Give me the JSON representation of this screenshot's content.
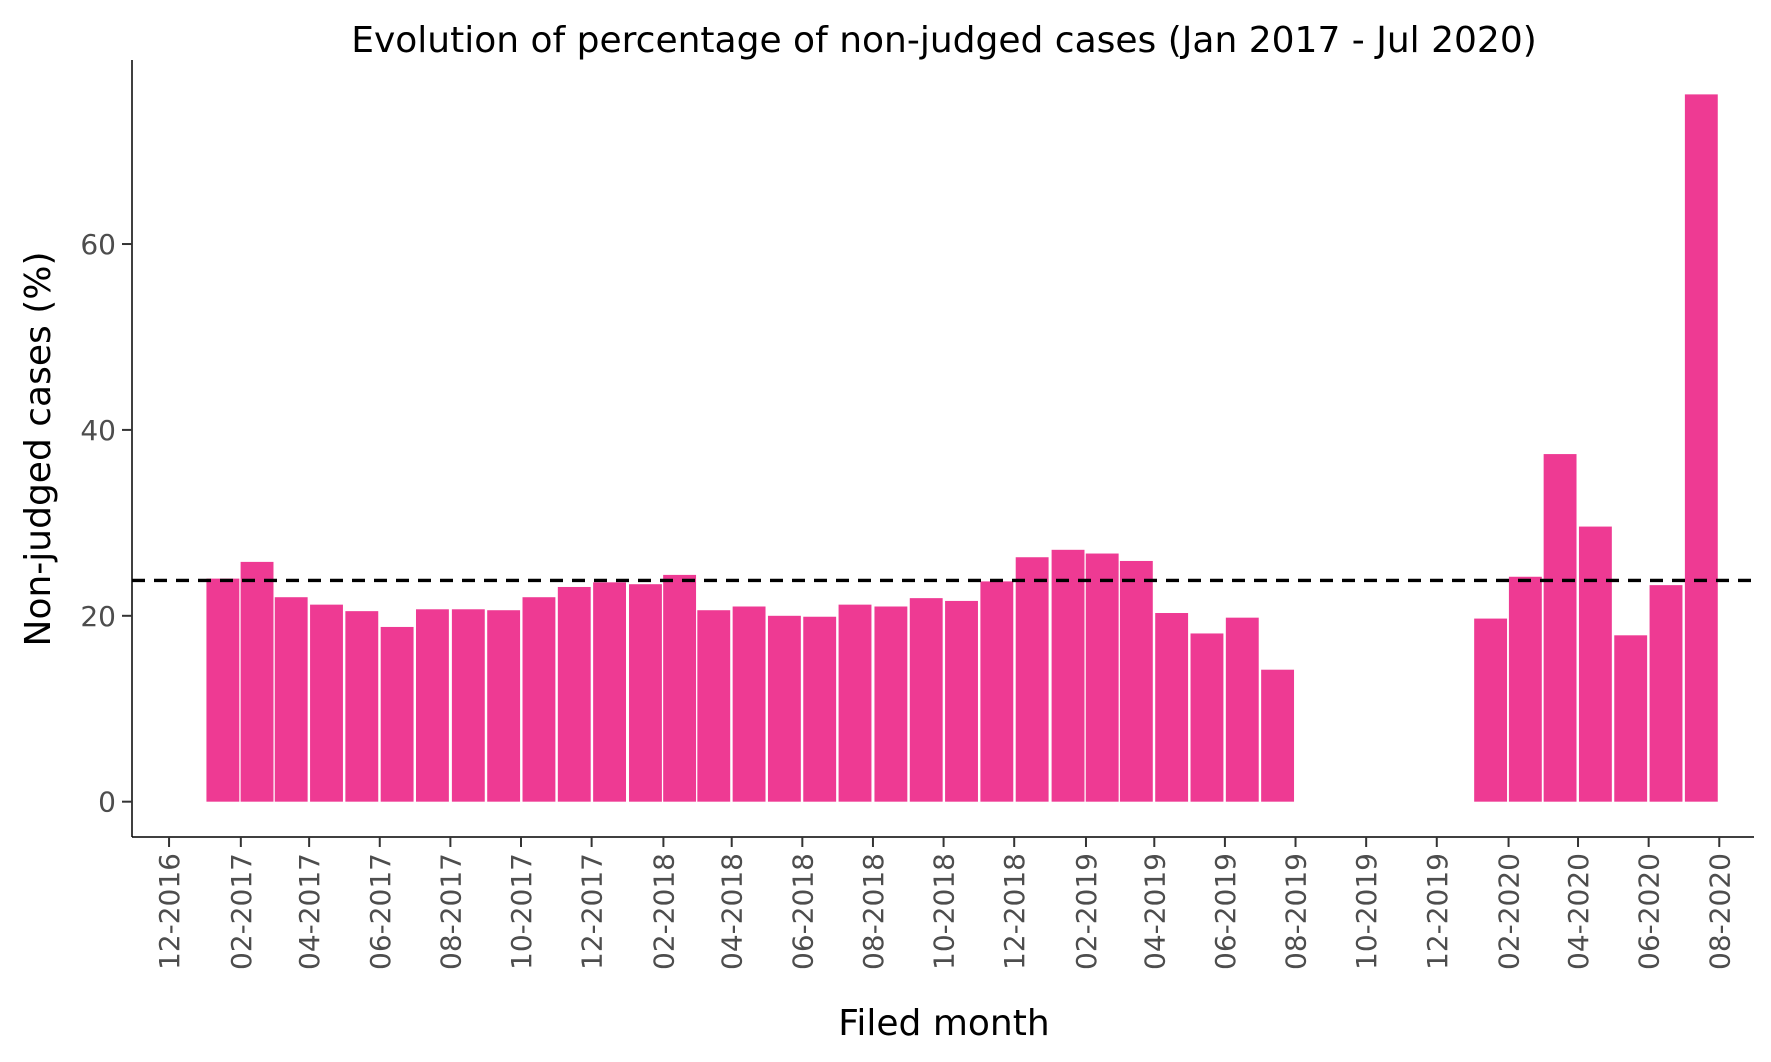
{
  "chart_data": {
    "type": "bar",
    "title": "Evolution of percentage of non-judged cases (Jan 2017 - Jul 2020)",
    "xlabel": "Filed month",
    "ylabel": "Non-judged cases (%)",
    "ylim": [
      -3.8,
      79.8
    ],
    "yticks": [
      0,
      20,
      40,
      60
    ],
    "xlim": [
      "2016-10-30",
      "2020-08-31"
    ],
    "xtick_labels": [
      "12-2016",
      "02-2017",
      "04-2017",
      "06-2017",
      "08-2017",
      "10-2017",
      "12-2017",
      "02-2018",
      "04-2018",
      "06-2018",
      "08-2018",
      "10-2018",
      "12-2018",
      "02-2019",
      "04-2019",
      "06-2019",
      "08-2019",
      "10-2019",
      "12-2019",
      "02-2020",
      "04-2020",
      "06-2020",
      "08-2020"
    ],
    "xtick_dates": [
      "2016-12-01",
      "2017-02-01",
      "2017-04-01",
      "2017-06-01",
      "2017-08-01",
      "2017-10-01",
      "2017-12-01",
      "2018-02-01",
      "2018-04-01",
      "2018-06-01",
      "2018-08-01",
      "2018-10-01",
      "2018-12-01",
      "2019-02-01",
      "2019-04-01",
      "2019-06-01",
      "2019-08-01",
      "2019-10-01",
      "2019-12-01",
      "2020-02-01",
      "2020-04-01",
      "2020-06-01",
      "2020-08-01"
    ],
    "x": [
      "2017-01",
      "2017-02",
      "2017-03",
      "2017-04",
      "2017-05",
      "2017-06",
      "2017-07",
      "2017-08",
      "2017-09",
      "2017-10",
      "2017-11",
      "2017-12",
      "2018-01",
      "2018-02",
      "2018-03",
      "2018-04",
      "2018-05",
      "2018-06",
      "2018-07",
      "2018-08",
      "2018-09",
      "2018-10",
      "2018-11",
      "2018-12",
      "2019-01",
      "2019-02",
      "2019-03",
      "2019-04",
      "2019-05",
      "2019-06",
      "2019-07",
      "2020-01",
      "2020-02",
      "2020-03",
      "2020-04",
      "2020-05",
      "2020-06",
      "2020-07"
    ],
    "values": [
      24.0,
      25.8,
      22.0,
      21.2,
      20.5,
      18.8,
      20.7,
      20.7,
      20.6,
      22.0,
      23.1,
      23.6,
      23.4,
      24.4,
      20.6,
      21.0,
      20.0,
      19.9,
      21.2,
      21.0,
      21.9,
      21.6,
      23.7,
      26.3,
      27.1,
      26.7,
      25.9,
      20.3,
      18.1,
      19.8,
      14.2,
      19.7,
      24.2,
      37.4,
      29.6,
      17.9,
      23.3,
      76.1
    ],
    "reference_line": {
      "value": 23.8,
      "style": "dashed"
    },
    "grid": false,
    "colors": {
      "bar": "#ee3a93",
      "reference_line": "#000000",
      "axis": "#000000",
      "tick_label": "#4d4d4d"
    }
  }
}
